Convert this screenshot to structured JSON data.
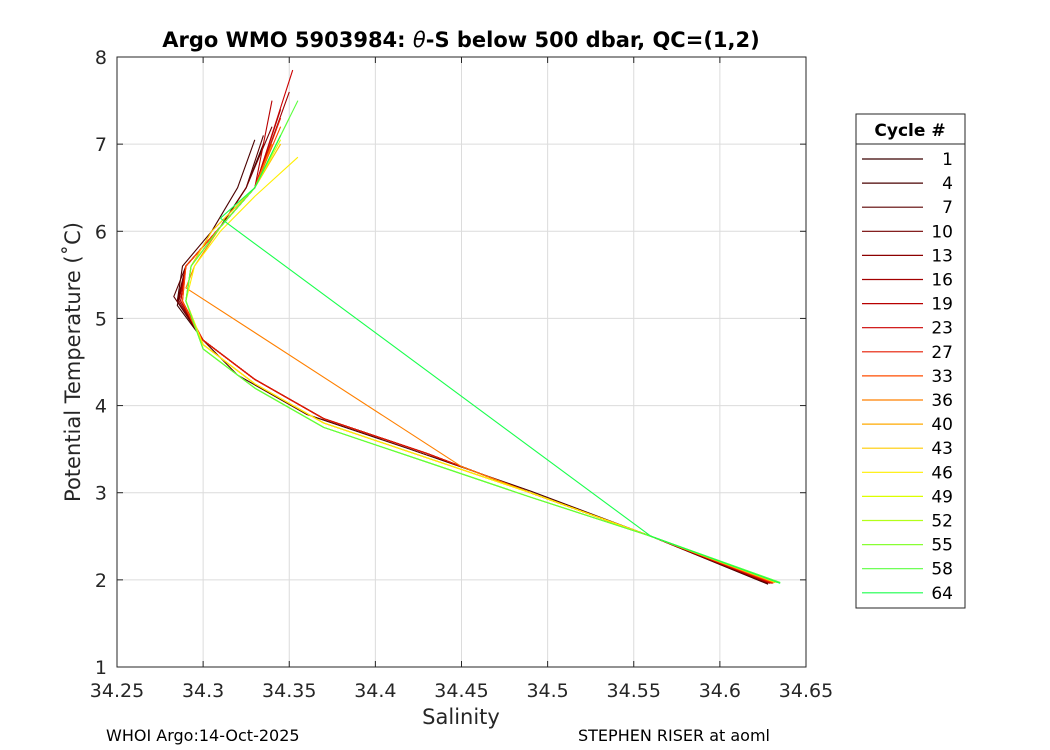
{
  "chart_data": {
    "type": "line",
    "title_prefix": "Argo WMO 5903984: ",
    "title_theta": "θ",
    "title_suffix": "-S below 500 dbar,  QC=(1,2)",
    "xlabel": "Salinity",
    "ylabel": "Potential Temperature (˚C)",
    "xlim": [
      34.25,
      34.65
    ],
    "ylim": [
      1,
      8
    ],
    "xticks": [
      "34.25",
      "34.3",
      "34.35",
      "34.4",
      "34.45",
      "34.5",
      "34.55",
      "34.6",
      "34.65"
    ],
    "yticks": [
      "1",
      "2",
      "3",
      "4",
      "5",
      "6",
      "7",
      "8"
    ],
    "grid": true,
    "legend_title": "Cycle #",
    "legend_position": "outside-right",
    "series": [
      {
        "name": "1",
        "color": "#3a0000",
        "points": [
          [
            34.628,
            1.95
          ],
          [
            34.56,
            2.5
          ],
          [
            34.49,
            3.0
          ],
          [
            34.43,
            3.45
          ],
          [
            34.37,
            3.85
          ],
          [
            34.33,
            4.3
          ],
          [
            34.3,
            4.75
          ],
          [
            34.285,
            5.15
          ],
          [
            34.29,
            5.6
          ],
          [
            34.31,
            6.05
          ],
          [
            34.325,
            6.5
          ],
          [
            34.335,
            7.0
          ]
        ]
      },
      {
        "name": "4",
        "color": "#4a0000",
        "points": [
          [
            34.627,
            1.96
          ],
          [
            34.56,
            2.5
          ],
          [
            34.49,
            3.02
          ],
          [
            34.42,
            3.5
          ],
          [
            34.36,
            3.9
          ],
          [
            34.32,
            4.35
          ],
          [
            34.3,
            4.75
          ],
          [
            34.285,
            5.2
          ],
          [
            34.288,
            5.6
          ],
          [
            34.305,
            6.0
          ],
          [
            34.32,
            6.5
          ],
          [
            34.33,
            7.05
          ]
        ]
      },
      {
        "name": "7",
        "color": "#5c0000",
        "points": [
          [
            34.629,
            1.96
          ],
          [
            34.56,
            2.5
          ],
          [
            34.49,
            3.0
          ],
          [
            34.43,
            3.45
          ],
          [
            34.37,
            3.85
          ],
          [
            34.33,
            4.3
          ],
          [
            34.3,
            4.75
          ],
          [
            34.283,
            5.25
          ],
          [
            34.29,
            5.6
          ],
          [
            34.31,
            6.05
          ],
          [
            34.325,
            6.5
          ],
          [
            34.335,
            7.1
          ]
        ]
      },
      {
        "name": "10",
        "color": "#720000",
        "points": [
          [
            34.628,
            1.96
          ],
          [
            34.56,
            2.5
          ],
          [
            34.49,
            3.0
          ],
          [
            34.43,
            3.45
          ],
          [
            34.37,
            3.85
          ],
          [
            34.33,
            4.3
          ],
          [
            34.3,
            4.75
          ],
          [
            34.285,
            5.2
          ],
          [
            34.29,
            5.6
          ],
          [
            34.31,
            6.05
          ],
          [
            34.325,
            6.5
          ],
          [
            34.34,
            7.2
          ]
        ]
      },
      {
        "name": "13",
        "color": "#8c0000",
        "points": [
          [
            34.63,
            1.96
          ],
          [
            34.56,
            2.5
          ],
          [
            34.49,
            3.0
          ],
          [
            34.43,
            3.45
          ],
          [
            34.37,
            3.85
          ],
          [
            34.33,
            4.3
          ],
          [
            34.3,
            4.75
          ],
          [
            34.286,
            5.2
          ],
          [
            34.29,
            5.6
          ],
          [
            34.31,
            6.05
          ],
          [
            34.33,
            6.5
          ],
          [
            34.345,
            7.4
          ]
        ]
      },
      {
        "name": "16",
        "color": "#a30000",
        "points": [
          [
            34.629,
            1.96
          ],
          [
            34.56,
            2.5
          ],
          [
            34.49,
            3.0
          ],
          [
            34.43,
            3.45
          ],
          [
            34.37,
            3.85
          ],
          [
            34.33,
            4.3
          ],
          [
            34.3,
            4.75
          ],
          [
            34.287,
            5.2
          ],
          [
            34.29,
            5.6
          ],
          [
            34.31,
            6.05
          ],
          [
            34.33,
            6.5
          ],
          [
            34.35,
            7.6
          ]
        ]
      },
      {
        "name": "19",
        "color": "#b80000",
        "points": [
          [
            34.63,
            1.96
          ],
          [
            34.56,
            2.5
          ],
          [
            34.49,
            3.0
          ],
          [
            34.43,
            3.45
          ],
          [
            34.37,
            3.85
          ],
          [
            34.33,
            4.3
          ],
          [
            34.3,
            4.75
          ],
          [
            34.287,
            5.2
          ],
          [
            34.29,
            5.6
          ],
          [
            34.31,
            6.05
          ],
          [
            34.33,
            6.5
          ],
          [
            34.34,
            7.5
          ]
        ]
      },
      {
        "name": "23",
        "color": "#cc0000",
        "points": [
          [
            34.63,
            1.96
          ],
          [
            34.56,
            2.5
          ],
          [
            34.49,
            3.0
          ],
          [
            34.43,
            3.45
          ],
          [
            34.37,
            3.85
          ],
          [
            34.33,
            4.3
          ],
          [
            34.3,
            4.75
          ],
          [
            34.287,
            5.2
          ],
          [
            34.29,
            5.6
          ],
          [
            34.31,
            6.05
          ],
          [
            34.33,
            6.5
          ],
          [
            34.352,
            7.85
          ]
        ]
      },
      {
        "name": "27",
        "color": "#e61a00",
        "points": [
          [
            34.631,
            1.96
          ],
          [
            34.56,
            2.5
          ],
          [
            34.49,
            3.0
          ],
          [
            34.43,
            3.45
          ],
          [
            34.37,
            3.85
          ],
          [
            34.33,
            4.3
          ],
          [
            34.3,
            4.75
          ],
          [
            34.288,
            5.2
          ],
          [
            34.29,
            5.6
          ],
          [
            34.31,
            6.05
          ],
          [
            34.33,
            6.5
          ],
          [
            34.345,
            7.3
          ]
        ]
      },
      {
        "name": "33",
        "color": "#ff4d00",
        "points": [
          [
            34.631,
            1.97
          ],
          [
            34.56,
            2.5
          ],
          [
            34.49,
            3.0
          ],
          [
            34.43,
            3.4
          ],
          [
            34.37,
            3.8
          ],
          [
            34.33,
            4.25
          ],
          [
            34.3,
            4.7
          ],
          [
            34.288,
            5.2
          ],
          [
            34.29,
            5.6
          ],
          [
            34.31,
            6.05
          ],
          [
            34.33,
            6.5
          ],
          [
            34.345,
            7.2
          ]
        ]
      },
      {
        "name": "36",
        "color": "#ff8000",
        "points": [
          [
            34.632,
            1.97
          ],
          [
            34.56,
            2.5
          ],
          [
            34.49,
            3.0
          ],
          [
            34.45,
            3.3
          ],
          [
            34.29,
            5.35
          ],
          [
            34.295,
            5.6
          ],
          [
            34.31,
            6.05
          ],
          [
            34.33,
            6.5
          ],
          [
            34.34,
            7.0
          ]
        ]
      },
      {
        "name": "40",
        "color": "#ffaa00",
        "points": [
          [
            34.632,
            1.97
          ],
          [
            34.56,
            2.5
          ],
          [
            34.49,
            3.0
          ],
          [
            34.43,
            3.4
          ],
          [
            34.37,
            3.8
          ],
          [
            34.33,
            4.25
          ],
          [
            34.3,
            4.7
          ],
          [
            34.29,
            5.2
          ],
          [
            34.293,
            5.6
          ],
          [
            34.305,
            6.0
          ],
          [
            34.33,
            6.5
          ],
          [
            34.345,
            7.0
          ]
        ]
      },
      {
        "name": "43",
        "color": "#ffcc00",
        "points": [
          [
            34.633,
            1.97
          ],
          [
            34.56,
            2.5
          ],
          [
            34.49,
            3.0
          ],
          [
            34.43,
            3.4
          ],
          [
            34.37,
            3.8
          ],
          [
            34.33,
            4.25
          ],
          [
            34.3,
            4.7
          ],
          [
            34.29,
            5.2
          ],
          [
            34.293,
            5.6
          ],
          [
            34.305,
            6.0
          ],
          [
            34.33,
            6.5
          ],
          [
            34.345,
            7.0
          ]
        ]
      },
      {
        "name": "46",
        "color": "#ffee00",
        "points": [
          [
            34.633,
            1.97
          ],
          [
            34.56,
            2.5
          ],
          [
            34.49,
            3.0
          ],
          [
            34.43,
            3.4
          ],
          [
            34.37,
            3.8
          ],
          [
            34.33,
            4.25
          ],
          [
            34.3,
            4.7
          ],
          [
            34.29,
            5.2
          ],
          [
            34.295,
            5.6
          ],
          [
            34.31,
            6.0
          ],
          [
            34.33,
            6.4
          ],
          [
            34.355,
            6.85
          ]
        ]
      },
      {
        "name": "49",
        "color": "#ddff00",
        "points": [
          [
            34.634,
            1.97
          ],
          [
            34.56,
            2.5
          ],
          [
            34.49,
            2.95
          ],
          [
            34.43,
            3.35
          ],
          [
            34.37,
            3.75
          ],
          [
            34.33,
            4.2
          ],
          [
            34.3,
            4.65
          ],
          [
            34.29,
            5.2
          ],
          [
            34.293,
            5.6
          ],
          [
            34.31,
            6.05
          ],
          [
            34.33,
            6.5
          ],
          [
            34.345,
            7.05
          ]
        ]
      },
      {
        "name": "52",
        "color": "#b3ff1a",
        "points": [
          [
            34.634,
            1.97
          ],
          [
            34.56,
            2.5
          ],
          [
            34.49,
            2.95
          ],
          [
            34.43,
            3.35
          ],
          [
            34.37,
            3.75
          ],
          [
            34.33,
            4.2
          ],
          [
            34.3,
            4.65
          ],
          [
            34.29,
            5.2
          ],
          [
            34.293,
            5.6
          ],
          [
            34.31,
            6.05
          ],
          [
            34.33,
            6.5
          ],
          [
            34.345,
            7.1
          ]
        ]
      },
      {
        "name": "55",
        "color": "#88ff33",
        "points": [
          [
            34.635,
            1.97
          ],
          [
            34.56,
            2.5
          ],
          [
            34.49,
            2.95
          ],
          [
            34.43,
            3.35
          ],
          [
            34.37,
            3.75
          ],
          [
            34.33,
            4.2
          ],
          [
            34.3,
            4.65
          ],
          [
            34.29,
            5.2
          ],
          [
            34.293,
            5.6
          ],
          [
            34.31,
            6.05
          ],
          [
            34.33,
            6.5
          ],
          [
            34.35,
            7.3
          ]
        ]
      },
      {
        "name": "58",
        "color": "#5cff40",
        "points": [
          [
            34.635,
            1.97
          ],
          [
            34.56,
            2.5
          ],
          [
            34.49,
            2.95
          ],
          [
            34.43,
            3.35
          ],
          [
            34.37,
            3.75
          ],
          [
            34.33,
            4.2
          ],
          [
            34.3,
            4.65
          ],
          [
            34.29,
            5.2
          ],
          [
            34.293,
            5.6
          ],
          [
            34.31,
            6.05
          ],
          [
            34.33,
            6.5
          ],
          [
            34.355,
            7.5
          ]
        ]
      },
      {
        "name": "64",
        "color": "#1aff4d",
        "points": [
          [
            34.635,
            1.96
          ],
          [
            34.56,
            2.5
          ],
          [
            34.31,
            6.15
          ],
          [
            34.33,
            6.5
          ],
          [
            34.345,
            7.1
          ]
        ]
      }
    ]
  },
  "footer": {
    "left": "WHOI Argo:14-Oct-2025",
    "right": "STEPHEN RISER at aoml"
  }
}
